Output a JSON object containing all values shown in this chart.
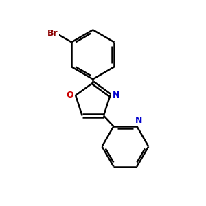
{
  "background_color": "#ffffff",
  "atom_color_N": "#0000cc",
  "atom_color_O": "#cc0000",
  "atom_color_Br": "#8b0000",
  "bond_color": "#000000",
  "bond_width": 1.8,
  "dbo": 0.07,
  "figsize": [
    3.0,
    3.0
  ],
  "dpi": 100,
  "xlim": [
    0,
    10
  ],
  "ylim": [
    0,
    10
  ]
}
